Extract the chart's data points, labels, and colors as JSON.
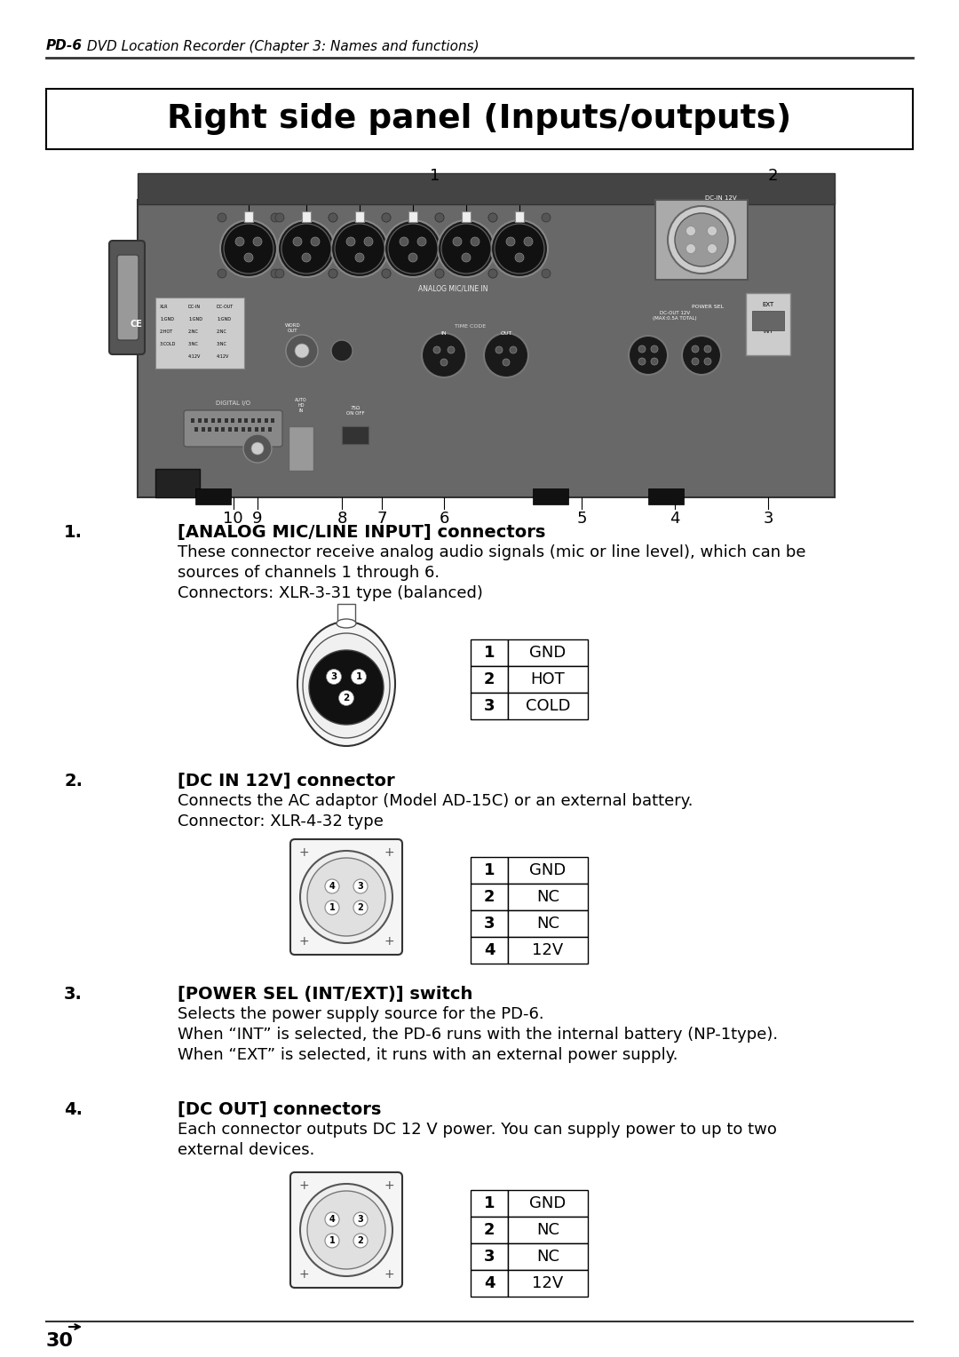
{
  "page_title": "Right side panel (Inputs/outputs)",
  "header_bold": "PD-6",
  "header_normal": " DVD Location Recorder (Chapter 3: Names and functions)",
  "footer_number": "30",
  "bg_color": "#ffffff",
  "section1_num": "1.",
  "section1_title": "[ANALOG MIC/LINE INPUT] connectors",
  "section1_body1": "These connector receive analog audio signals (mic or line level), which can be",
  "section1_body2": "sources of channels 1 through 6.",
  "section1_body3": "Connectors: XLR-3-31 type (balanced)",
  "section1_table": [
    [
      "1",
      "GND"
    ],
    [
      "2",
      "HOT"
    ],
    [
      "3",
      "COLD"
    ]
  ],
  "section2_num": "2.",
  "section2_title": "[DC IN 12V] connector",
  "section2_body1": "Connects the AC adaptor (Model AD-15C) or an external battery.",
  "section2_body2": "Connector: XLR-4-32 type",
  "section2_table": [
    [
      "1",
      "GND"
    ],
    [
      "2",
      "NC"
    ],
    [
      "3",
      "NC"
    ],
    [
      "4",
      "12V"
    ]
  ],
  "section3_num": "3.",
  "section3_title": "[POWER SEL (INT/EXT)] switch",
  "section3_body1": "Selects the power supply source for the PD-6.",
  "section3_body2": "When “INT” is selected, the PD-6 runs with the internal battery (NP-1type).",
  "section3_body3": "When “EXT” is selected, it runs with an external power supply.",
  "section4_num": "4.",
  "section4_title": "[DC OUT] connectors",
  "section4_body1": "Each connector outputs DC 12 V power. You can supply power to up to two",
  "section4_body2": "external devices.",
  "section4_table": [
    [
      "1",
      "GND"
    ],
    [
      "2",
      "NC"
    ],
    [
      "3",
      "NC"
    ],
    [
      "4",
      "12V"
    ]
  ],
  "label_numbers_below": [
    "10",
    "9",
    "8",
    "7",
    "6",
    "5",
    "4",
    "3"
  ],
  "label_numbers_above": [
    "1",
    "2"
  ]
}
